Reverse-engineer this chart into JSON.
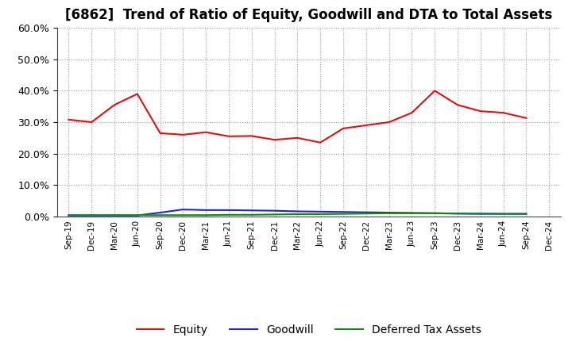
{
  "title": "[6862]  Trend of Ratio of Equity, Goodwill and DTA to Total Assets",
  "x_labels": [
    "Sep-19",
    "Dec-19",
    "Mar-20",
    "Jun-20",
    "Sep-20",
    "Dec-20",
    "Mar-21",
    "Jun-21",
    "Sep-21",
    "Dec-21",
    "Mar-22",
    "Jun-22",
    "Sep-22",
    "Dec-22",
    "Mar-23",
    "Jun-23",
    "Sep-23",
    "Dec-23",
    "Mar-24",
    "Jun-24",
    "Sep-24",
    "Dec-24"
  ],
  "equity": [
    0.308,
    0.3,
    0.355,
    0.39,
    0.265,
    0.26,
    0.268,
    0.255,
    0.256,
    0.244,
    0.25,
    0.235,
    0.28,
    0.29,
    0.3,
    0.33,
    0.4,
    0.355,
    0.335,
    0.33,
    0.313,
    null
  ],
  "goodwill": [
    0.003,
    0.003,
    0.003,
    0.003,
    0.012,
    0.022,
    0.02,
    0.02,
    0.019,
    0.018,
    0.016,
    0.015,
    0.014,
    0.013,
    0.012,
    0.011,
    0.01,
    0.009,
    0.008,
    0.008,
    0.008,
    null
  ],
  "dta": [
    0.004,
    0.004,
    0.004,
    0.004,
    0.004,
    0.004,
    0.004,
    0.005,
    0.005,
    0.006,
    0.007,
    0.007,
    0.008,
    0.009,
    0.01,
    0.01,
    0.01,
    0.009,
    0.009,
    0.008,
    0.008,
    null
  ],
  "equity_color": "#dd1111",
  "goodwill_color": "#2222dd",
  "dta_color": "#118811",
  "ylim": [
    0.0,
    0.6
  ],
  "yticks": [
    0.0,
    0.1,
    0.2,
    0.3,
    0.4,
    0.5,
    0.6
  ],
  "background_color": "#ffffff",
  "plot_bg_color": "#ffffff",
  "grid_color": "#999999",
  "title_fontsize": 12,
  "legend_labels": [
    "Equity",
    "Goodwill",
    "Deferred Tax Assets"
  ]
}
